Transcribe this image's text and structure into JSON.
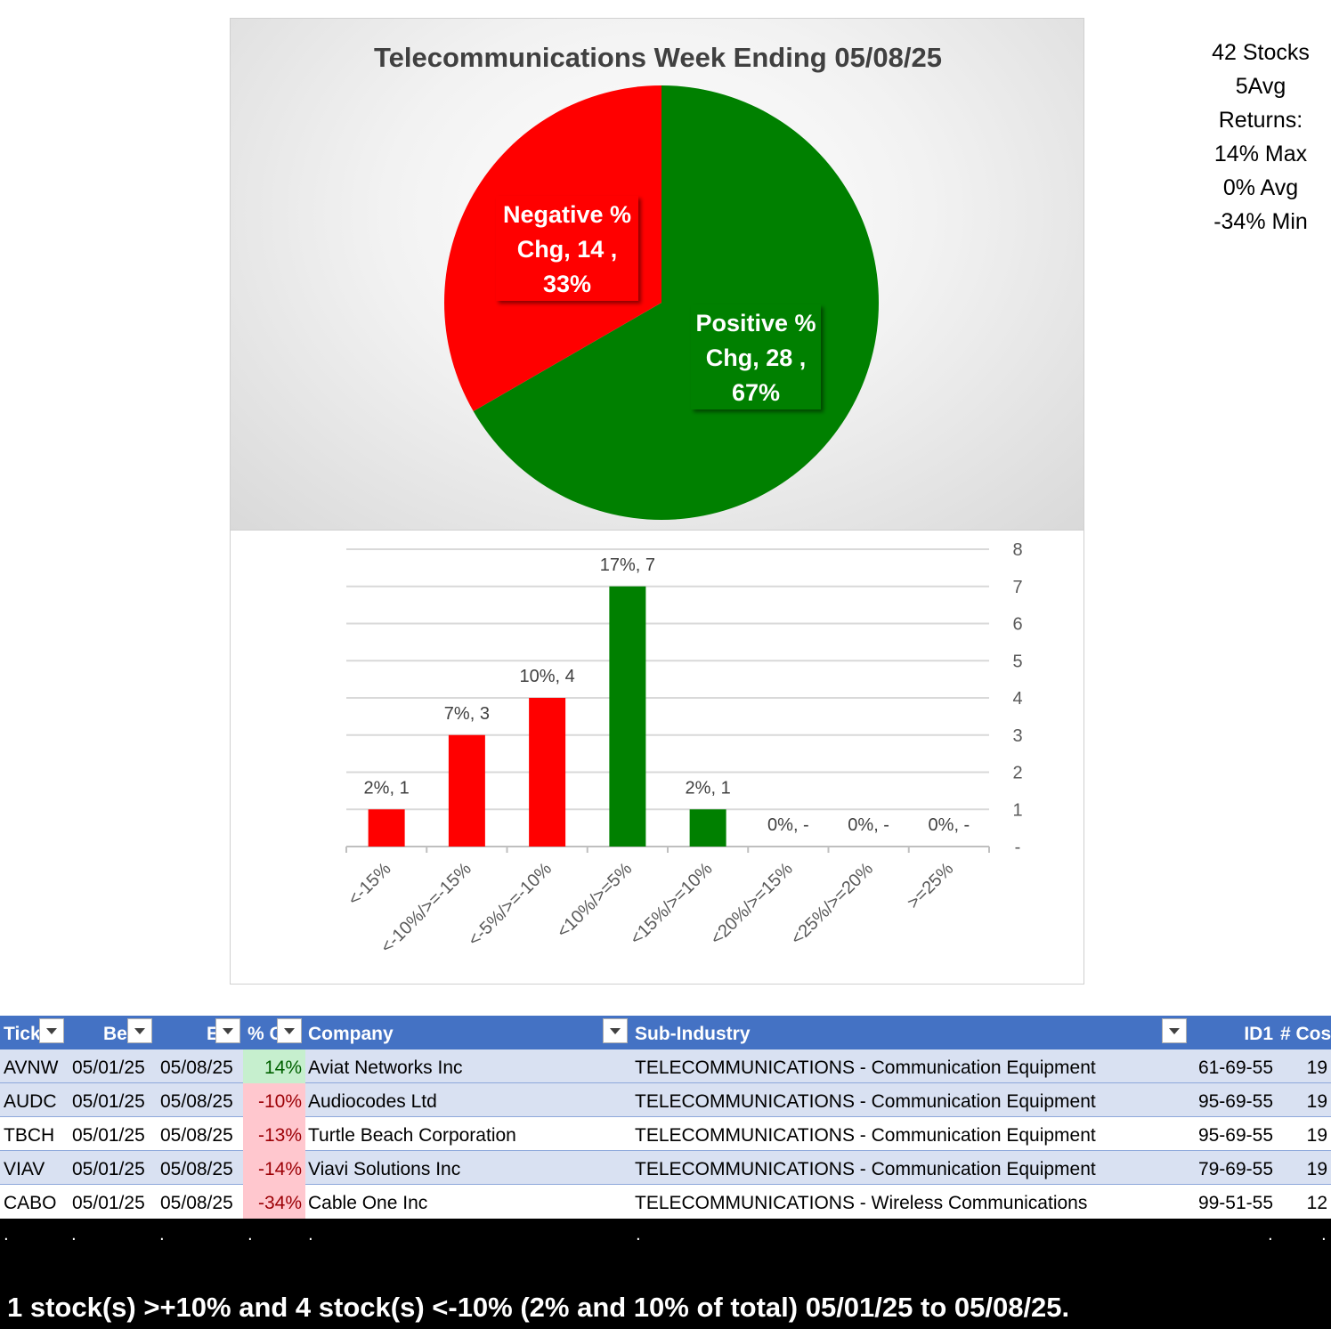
{
  "chart_data": [
    {
      "type": "pie",
      "title": "Telecommunications  Week Ending 05/08/25",
      "categories": [
        "Positive % Chg",
        "Negative % Chg"
      ],
      "values": [
        28,
        14
      ],
      "percent_labels": [
        "67%",
        "33%"
      ],
      "colors": [
        "#008000",
        "#ff0000"
      ],
      "data_labels": [
        {
          "lines": [
            "Positive %",
            "Chg,  28 ,",
            "67%"
          ]
        },
        {
          "lines": [
            "Negative %",
            "Chg,  14 ,",
            "33%"
          ]
        }
      ],
      "legend": "none"
    },
    {
      "type": "bar",
      "categories": [
        "<-15%",
        "<-10%/>=-15%",
        "<-5%/>=-10%",
        "<10%/>=5%",
        "<15%/>=10%",
        "<20%/>=15%",
        "<25%/>=20%",
        ">=25%"
      ],
      "values": [
        1,
        3,
        4,
        7,
        1,
        0,
        0,
        0
      ],
      "data_labels": [
        "2%,  1",
        "7%,  3",
        "10%,  4",
        "17%,  7",
        "2%,  1",
        "0%,  -",
        "0%,  -",
        "0%,  -"
      ],
      "bar_colors": [
        "#ff0000",
        "#ff0000",
        "#ff0000",
        "#008000",
        "#008000",
        "#008000",
        "#008000",
        "#008000"
      ],
      "ylim": [
        0,
        8
      ],
      "yticks": [
        "-",
        "1",
        "2",
        "3",
        "4",
        "5",
        "6",
        "7",
        "8"
      ],
      "y_axis_side": "right",
      "grid": true,
      "xlabel": "",
      "ylabel": ""
    }
  ],
  "summary": [
    "42 Stocks",
    "5Avg",
    "Returns:",
    "14% Max",
    "0% Avg",
    "-34% Min"
  ],
  "table": {
    "headers": [
      "Tick",
      "Be",
      "E",
      "% C",
      "Company",
      "Sub-Industry",
      "ID1",
      "# Cos"
    ],
    "rows": [
      {
        "ticker": "AVNW",
        "begin": "05/01/25",
        "end": "05/08/25",
        "pct": "14%",
        "sign": "pos",
        "company": "Aviat Networks Inc",
        "sub": "TELECOMMUNICATIONS - Communication Equipment",
        "id": "61-69-55",
        "cos": "19"
      },
      {
        "ticker": "AUDC",
        "begin": "05/01/25",
        "end": "05/08/25",
        "pct": "-10%",
        "sign": "neg",
        "company": "Audiocodes Ltd",
        "sub": "TELECOMMUNICATIONS - Communication Equipment",
        "id": "95-69-55",
        "cos": "19"
      },
      {
        "ticker": "TBCH",
        "begin": "05/01/25",
        "end": "05/08/25",
        "pct": "-13%",
        "sign": "neg",
        "company": "Turtle Beach Corporation",
        "sub": "TELECOMMUNICATIONS - Communication Equipment",
        "id": "95-69-55",
        "cos": "19"
      },
      {
        "ticker": "VIAV",
        "begin": "05/01/25",
        "end": "05/08/25",
        "pct": "-14%",
        "sign": "neg",
        "company": "Viavi Solutions Inc",
        "sub": "TELECOMMUNICATIONS - Communication Equipment",
        "id": "79-69-55",
        "cos": "19"
      },
      {
        "ticker": "CABO",
        "begin": "05/01/25",
        "end": "05/08/25",
        "pct": "-34%",
        "sign": "neg",
        "company": "Cable One Inc",
        "sub": "TELECOMMUNICATIONS - Wireless Communications",
        "id": "99-51-55",
        "cos": "12"
      }
    ]
  },
  "footer": {
    "dots": [
      ".",
      ".",
      ".",
      ".",
      ".",
      ".",
      ".",
      "."
    ],
    "text": "1 stock(s) >+10% and 4 stock(s) <-10% (2% and 10% of total) 05/01/25 to 05/08/25."
  }
}
